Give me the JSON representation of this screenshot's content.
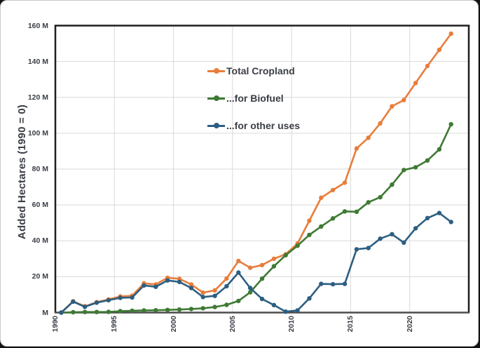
{
  "window": {
    "background_color": "#141414",
    "card_color": "#FFFFFF",
    "card_border_color": "#C9C9C9"
  },
  "chart_data": {
    "type": "line",
    "title": "",
    "y_axis_title": "Added Hectares (1990 = 0)",
    "x_label": "",
    "x": [
      1990,
      1991,
      1992,
      1993,
      1994,
      1995,
      1996,
      1997,
      1998,
      1999,
      2000,
      2001,
      2002,
      2003,
      2004,
      2005,
      2006,
      2007,
      2008,
      2009,
      2010,
      2011,
      2012,
      2013,
      2014,
      2015,
      2016,
      2017,
      2018,
      2019,
      2020,
      2021,
      2022,
      2023
    ],
    "series": [
      {
        "name": "Total Cropland",
        "color": "#E87D3C",
        "values": [
          0,
          6.3,
          3.5,
          5.8,
          7.3,
          9.0,
          9.4,
          16.3,
          15.7,
          19.4,
          18.8,
          15.7,
          11.1,
          12.4,
          19.0,
          28.8,
          25.0,
          26.5,
          30.0,
          32.5,
          38.5,
          51.2,
          64.0,
          68.3,
          72.4,
          91.5,
          97.5,
          105.5,
          115.0,
          118.5,
          128.0,
          137.5,
          146.5,
          155.5
        ]
      },
      {
        "name": "...for Biofuel",
        "color": "#3E7A33",
        "values": [
          0,
          0.2,
          0.3,
          0.3,
          0.4,
          0.8,
          1.0,
          1.2,
          1.3,
          1.5,
          1.7,
          2.0,
          2.4,
          3.1,
          4.3,
          6.5,
          11.3,
          18.9,
          25.8,
          32.0,
          37.3,
          43.3,
          48.0,
          52.5,
          56.4,
          56.2,
          61.5,
          64.3,
          71.3,
          79.5,
          81.0,
          84.8,
          91.0,
          105.0
        ]
      },
      {
        "name": "...for other uses",
        "color": "#2C5E82",
        "values": [
          0,
          6.1,
          3.2,
          5.5,
          6.9,
          8.2,
          8.4,
          15.1,
          14.4,
          17.9,
          17.1,
          13.7,
          8.7,
          9.3,
          14.7,
          22.3,
          13.7,
          7.6,
          4.2,
          0.5,
          1.2,
          7.9,
          16.0,
          15.8,
          16.0,
          35.3,
          36.0,
          41.2,
          43.7,
          39.0,
          47.0,
          52.7,
          55.5,
          50.5
        ]
      }
    ],
    "y_ticks": [
      {
        "value": 0,
        "label": "M"
      },
      {
        "value": 20,
        "label": "20 M"
      },
      {
        "value": 40,
        "label": "40 M"
      },
      {
        "value": 60,
        "label": "60 M"
      },
      {
        "value": 80,
        "label": "80 M"
      },
      {
        "value": 100,
        "label": "100 M"
      },
      {
        "value": 120,
        "label": "120 M"
      },
      {
        "value": 140,
        "label": "140 M"
      },
      {
        "value": 160,
        "label": "160 M"
      }
    ],
    "x_ticks": [
      {
        "year": 1990,
        "label": "1990"
      },
      {
        "year": 1995,
        "label": "1995"
      },
      {
        "year": 2000,
        "label": "2000"
      },
      {
        "year": 2005,
        "label": "2005"
      },
      {
        "year": 2010,
        "label": "2010"
      },
      {
        "year": 2015,
        "label": "2015"
      },
      {
        "year": 2020,
        "label": "2020"
      }
    ],
    "x_gridline_years": [
      1995,
      2000,
      2005,
      2010,
      2015,
      2020
    ],
    "ylim": [
      0,
      160
    ],
    "grid": true,
    "legend_position": "inside-top-center",
    "colors": {
      "gridline": "#D9D9D9",
      "plot_border": "#1E1E1E",
      "baseline": "#4D4D4D",
      "axis_text": "#3A3E45"
    }
  }
}
